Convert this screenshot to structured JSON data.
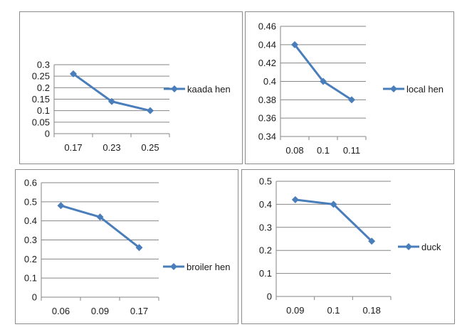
{
  "chart_data": [
    {
      "type": "line",
      "categories": [
        "0.17",
        "0.23",
        "0.25"
      ],
      "series": [
        {
          "name": "kaada hen",
          "values": [
            0.26,
            0.14,
            0.1
          ]
        }
      ],
      "yticks": [
        "0",
        "0.05",
        "0.1",
        "0.15",
        "0.2",
        "0.25",
        "0.3"
      ],
      "ylim": [
        0,
        0.3
      ],
      "grid": true,
      "legend": "right",
      "color": "#4a7ebb"
    },
    {
      "type": "line",
      "categories": [
        "0.08",
        "0.1",
        "0.11"
      ],
      "series": [
        {
          "name": "local hen",
          "values": [
            0.44,
            0.4,
            0.38
          ]
        }
      ],
      "yticks": [
        "0.34",
        "0.36",
        "0.38",
        "0.4",
        "0.42",
        "0.44",
        "0.46"
      ],
      "ylim": [
        0.34,
        0.46
      ],
      "grid": true,
      "legend": "right",
      "color": "#4a7ebb"
    },
    {
      "type": "line",
      "categories": [
        "0.06",
        "0.09",
        "0.17"
      ],
      "series": [
        {
          "name": "broiler hen",
          "values": [
            0.48,
            0.42,
            0.26
          ]
        }
      ],
      "yticks": [
        "0",
        "0.1",
        "0.2",
        "0.3",
        "0.4",
        "0.5",
        "0.6"
      ],
      "ylim": [
        0,
        0.6
      ],
      "grid": true,
      "legend": "right",
      "color": "#4a7ebb"
    },
    {
      "type": "line",
      "categories": [
        "0.09",
        "0.1",
        "0.18"
      ],
      "series": [
        {
          "name": "duck",
          "values": [
            0.42,
            0.4,
            0.24
          ]
        }
      ],
      "yticks": [
        "0",
        "0.1",
        "0.2",
        "0.3",
        "0.4",
        "0.5"
      ],
      "ylim": [
        0,
        0.5
      ],
      "grid": true,
      "legend": "right",
      "color": "#4a7ebb"
    }
  ]
}
